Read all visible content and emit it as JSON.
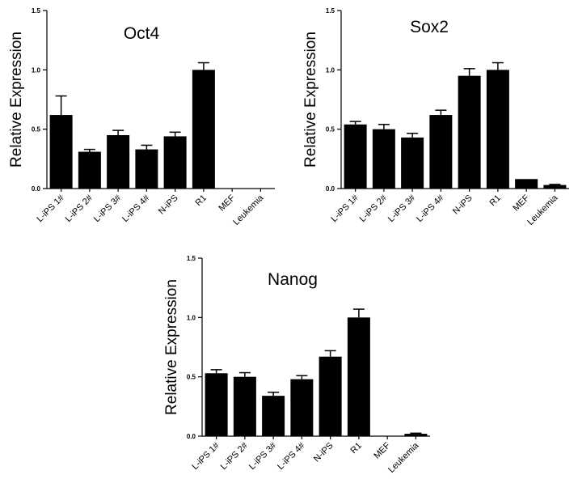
{
  "chart_data": [
    {
      "type": "bar",
      "title": "Oct4",
      "ylabel": "Relative Expression",
      "xlabel": "",
      "ylim": [
        0,
        1.5
      ],
      "yticks": [
        "0.0",
        "0.5",
        "1.0",
        "1.5"
      ],
      "ytick_values": [
        0,
        0.5,
        1.0,
        1.5
      ],
      "categories": [
        "L-iPS 1#",
        "L-iPS 2#",
        "L-iPS 3#",
        "L-iPS 4#",
        "N-iPS",
        "R1",
        "MEF",
        "Leukemia"
      ],
      "values": [
        0.62,
        0.31,
        0.45,
        0.33,
        0.44,
        1.0,
        0.0,
        0.0
      ],
      "errors": [
        0.16,
        0.02,
        0.04,
        0.035,
        0.035,
        0.06,
        0.0,
        0.0
      ],
      "bar_color": "#000000",
      "grid": false
    },
    {
      "type": "bar",
      "title": "Sox2",
      "ylabel": "Relative Expression",
      "xlabel": "",
      "ylim": [
        0,
        1.5
      ],
      "yticks": [
        "0.0",
        "0.5",
        "1.0",
        "1.5"
      ],
      "ytick_values": [
        0,
        0.5,
        1.0,
        1.5
      ],
      "categories": [
        "L-iPS 1#",
        "L-iPS 2#",
        "L-iPS 3#",
        "L-iPS 4#",
        "N-iPS",
        "R1",
        "MEF",
        "Leukemia"
      ],
      "values": [
        0.54,
        0.5,
        0.43,
        0.62,
        0.95,
        1.0,
        0.08,
        0.03
      ],
      "errors": [
        0.025,
        0.04,
        0.035,
        0.04,
        0.06,
        0.06,
        0.0,
        0.005
      ],
      "bar_color": "#000000",
      "grid": false
    },
    {
      "type": "bar",
      "title": "Nanog",
      "ylabel": "Relative Expression",
      "xlabel": "",
      "ylim": [
        0,
        1.5
      ],
      "yticks": [
        "0.0",
        "0.5",
        "1.0",
        "1.5"
      ],
      "ytick_values": [
        0,
        0.5,
        1.0,
        1.5
      ],
      "categories": [
        "L-iPS 1#",
        "L-iPS 2#",
        "L-iPS 3#",
        "L-iPS 4#",
        "N-iPS",
        "R1",
        "MEF",
        "Leukemia"
      ],
      "values": [
        0.53,
        0.5,
        0.34,
        0.48,
        0.67,
        1.0,
        0.0,
        0.02
      ],
      "errors": [
        0.03,
        0.035,
        0.03,
        0.03,
        0.05,
        0.07,
        0.0,
        0.005
      ],
      "bar_color": "#000000",
      "grid": false
    }
  ]
}
